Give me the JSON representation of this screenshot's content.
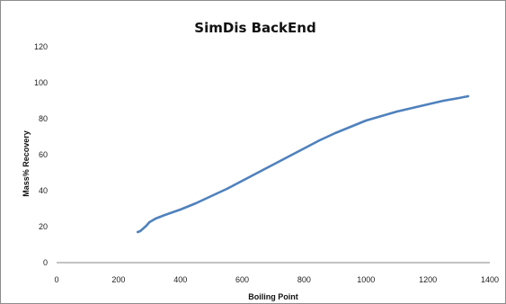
{
  "chart_data": {
    "type": "line",
    "title": "SimDis BackEnd",
    "xlabel": "Boiling Point",
    "ylabel": "Mass% Recovery",
    "xlim": [
      0,
      1400
    ],
    "ylim": [
      0,
      120
    ],
    "x_ticks": [
      0,
      200,
      400,
      600,
      800,
      1000,
      1200,
      1400
    ],
    "y_ticks": [
      0,
      20,
      40,
      60,
      80,
      100,
      120
    ],
    "grid": false,
    "legend": "none",
    "series": [
      {
        "color": "#4f81bd",
        "x": [
          262,
          270,
          280,
          290,
          300,
          320,
          350,
          400,
          450,
          500,
          550,
          600,
          650,
          700,
          750,
          800,
          850,
          900,
          950,
          1000,
          1050,
          1100,
          1150,
          1200,
          1250,
          1300,
          1330
        ],
        "y": [
          17,
          17.5,
          19,
          20.5,
          22.5,
          24.5,
          26.5,
          29.5,
          33,
          37,
          41,
          45.5,
          50,
          54.5,
          59,
          63.5,
          68,
          72,
          75.5,
          79,
          81.5,
          84,
          86,
          88,
          90,
          91.5,
          92.5
        ]
      }
    ]
  }
}
